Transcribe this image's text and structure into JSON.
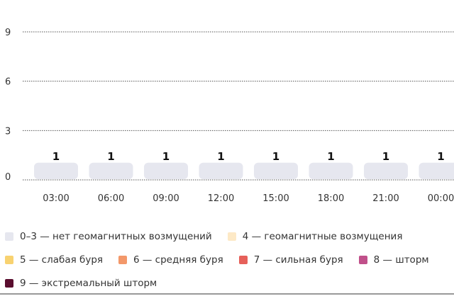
{
  "chart_data": {
    "type": "bar",
    "title": "",
    "xlabel": "",
    "ylabel": "",
    "ylim": [
      0,
      9
    ],
    "yticks": [
      0,
      3,
      6,
      9
    ],
    "grid": true,
    "categories": [
      "03:00",
      "06:00",
      "09:00",
      "12:00",
      "15:00",
      "18:00",
      "21:00",
      "00:00"
    ],
    "values": [
      1,
      1,
      1,
      1,
      1,
      1,
      1,
      1
    ],
    "bar_color": "#e6e7ef",
    "legend_placement": "bottom",
    "legend": [
      {
        "label": "0–3 — нет геомагнитных возмущений",
        "color": "#e6e7ef"
      },
      {
        "label": "4 — геомагнитные возмущения",
        "color": "#fde9c6"
      },
      {
        "label": "5 — слабая буря",
        "color": "#f8d270"
      },
      {
        "label": "6 — средняя буря",
        "color": "#f3986a"
      },
      {
        "label": "7 — сильная буря",
        "color": "#e6605a"
      },
      {
        "label": "8 — шторм",
        "color": "#c0508a"
      },
      {
        "label": "9 — экстремальный шторм",
        "color": "#5a0d2e"
      }
    ]
  }
}
